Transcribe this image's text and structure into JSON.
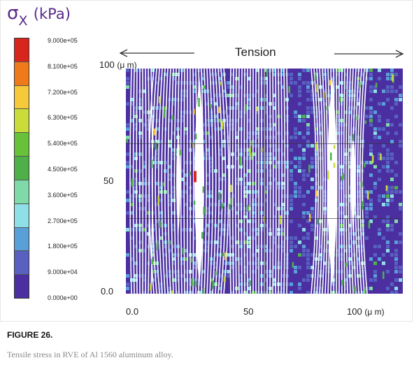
{
  "figure": {
    "quantity_symbol": "σ",
    "quantity_subscript": "X",
    "quantity_unit": "(kPa)",
    "direction_label": "Tension",
    "figure_label": "FIGURE 26.",
    "caption": "Tensile stress in RVE of Al 1560 aluminum alloy."
  },
  "chart_data": {
    "type": "heatmap",
    "title": "Tension",
    "colorbar_label": "σX (kPa)",
    "colorbar_ticks": [
      "9.000e+05",
      "8.100e+05",
      "7.200e+05",
      "6.300e+05",
      "5.400e+05",
      "4.500e+05",
      "3.600e+05",
      "2.700e+05",
      "1.800e+05",
      "9.000e+04",
      "0.000e+00"
    ],
    "colorbar_colors": [
      "#d9261c",
      "#ef7a1a",
      "#f5c93a",
      "#c9dc3a",
      "#67c23a",
      "#4fb04a",
      "#7fd9a8",
      "#8fe0e6",
      "#5aa0d8",
      "#5860c0",
      "#4b2fa0"
    ],
    "x_ticks": [
      "0.0",
      "50",
      "100"
    ],
    "x_unit": "(μ m)",
    "y_ticks": [
      "0.0",
      "50",
      "100"
    ],
    "y_unit": "(μ m)",
    "xlim": [
      0,
      100
    ],
    "ylim": [
      0,
      100
    ],
    "peak_stress_location": {
      "x": 25,
      "y": 52
    }
  }
}
